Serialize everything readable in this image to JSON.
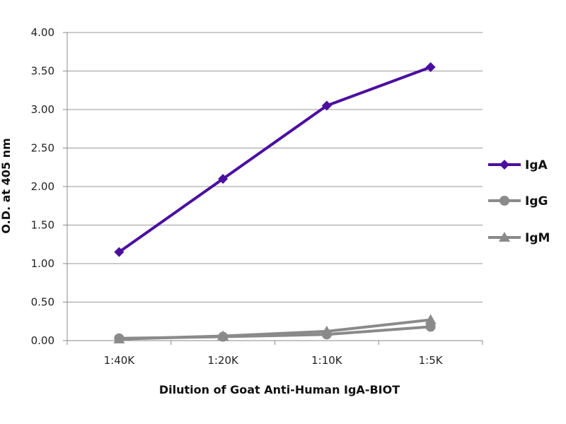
{
  "chart_data": {
    "type": "line",
    "categories": [
      "1:40K",
      "1:20K",
      "1:10K",
      "1:5K"
    ],
    "series": [
      {
        "name": "IgA",
        "values": [
          1.15,
          2.1,
          3.05,
          3.55
        ],
        "color": "#4b0fa0",
        "marker": "diamond"
      },
      {
        "name": "IgG",
        "values": [
          0.03,
          0.05,
          0.08,
          0.18
        ],
        "color": "#8a8a8a",
        "marker": "circle"
      },
      {
        "name": "IgM",
        "values": [
          0.02,
          0.06,
          0.12,
          0.27
        ],
        "color": "#8a8a8a",
        "marker": "triangle"
      }
    ],
    "ylim": [
      0,
      4
    ],
    "yticks": [
      "0.00",
      "0.50",
      "1.00",
      "1.50",
      "2.00",
      "2.50",
      "3.00",
      "3.50",
      "4.00"
    ],
    "xlabel": "Dilution of Goat Anti-Human IgA-BIOT",
    "ylabel": "O.D. at 405 nm",
    "grid": "horizontal",
    "legend": "right"
  }
}
